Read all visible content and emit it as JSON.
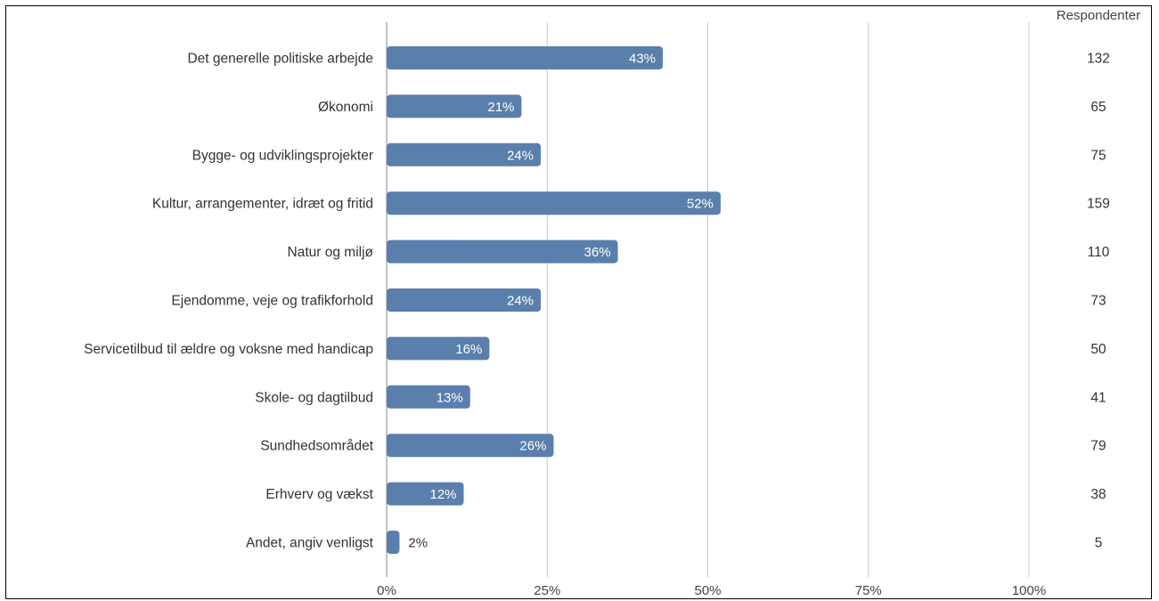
{
  "chart_data": {
    "type": "bar",
    "orientation": "horizontal",
    "title": "",
    "categories": [
      "Det generelle politiske arbejde",
      "Økonomi",
      "Bygge- og udviklingsprojekter",
      "Kultur, arrangementer, idræt og fritid",
      "Natur og miljø",
      "Ejendomme, veje og trafikforhold",
      "Servicetilbud til ældre og voksne med handicap",
      "Skole- og dagtilbud",
      "Sundhedsområdet",
      "Erhverv og vækst",
      "Andet, angiv venligst"
    ],
    "values": [
      43,
      21,
      24,
      52,
      36,
      24,
      16,
      13,
      26,
      12,
      2
    ],
    "value_labels": [
      "43%",
      "21%",
      "24%",
      "52%",
      "36%",
      "24%",
      "16%",
      "13%",
      "26%",
      "12%",
      "2%"
    ],
    "respondents_header": "Respondenter",
    "respondents": [
      "132",
      "65",
      "75",
      "159",
      "110",
      "73",
      "50",
      "41",
      "79",
      "38",
      "5"
    ],
    "x_ticks": [
      "0%",
      "25%",
      "50%",
      "75%",
      "100%"
    ],
    "xlim": [
      0,
      100
    ],
    "grid": true,
    "bar_color": "#5b7fac",
    "grid_color": "#c8c8c8"
  }
}
